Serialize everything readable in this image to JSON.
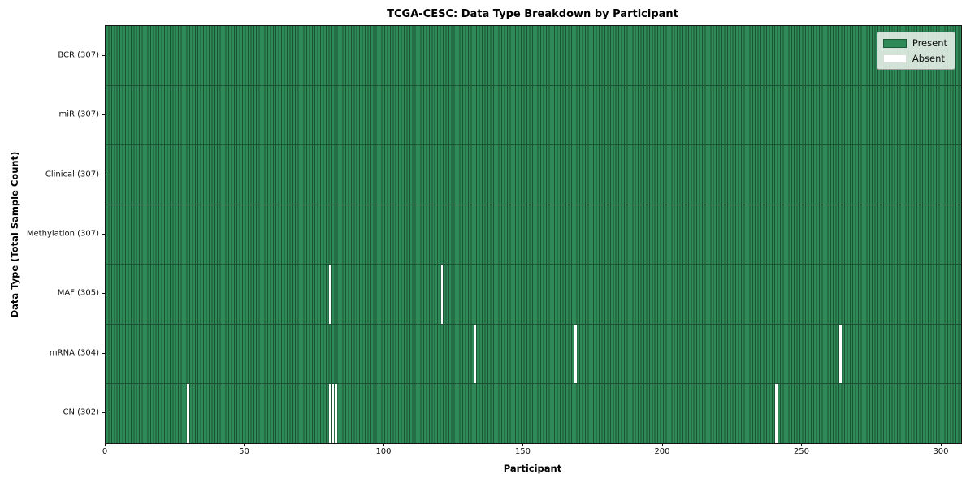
{
  "title": "TCGA-CESC: Data Type Breakdown by Participant",
  "chart_data": {
    "type": "heatmap",
    "title": "TCGA-CESC: Data Type Breakdown by Participant",
    "xlabel": "Participant",
    "ylabel": "Data Type (Total Sample Count)",
    "x_ticks": [
      0,
      50,
      100,
      150,
      200,
      250,
      300
    ],
    "xlim": [
      0,
      307
    ],
    "n_participants": 307,
    "grid": false,
    "legend_position": "upper right",
    "legend": [
      {
        "label": "Present",
        "color": "#2e8b57"
      },
      {
        "label": "Absent",
        "color": "#ffffff"
      }
    ],
    "rows": [
      {
        "label": "BCR (307)",
        "data_type": "BCR",
        "total": 307,
        "absent_participants": []
      },
      {
        "label": "miR (307)",
        "data_type": "miR",
        "total": 307,
        "absent_participants": []
      },
      {
        "label": "Clinical (307)",
        "data_type": "Clinical",
        "total": 307,
        "absent_participants": []
      },
      {
        "label": "Methylation (307)",
        "data_type": "Methylation",
        "total": 307,
        "absent_participants": []
      },
      {
        "label": "MAF (305)",
        "data_type": "MAF",
        "total": 305,
        "absent_participants": [
          80,
          120
        ]
      },
      {
        "label": "mRNA (304)",
        "data_type": "mRNA",
        "total": 304,
        "absent_participants": [
          132,
          168,
          263
        ]
      },
      {
        "label": "CN (302)",
        "data_type": "CN",
        "total": 302,
        "absent_participants": [
          29,
          80,
          81,
          82,
          240
        ]
      }
    ],
    "colors": {
      "present": "#2e8b57",
      "absent": "#ffffff",
      "cell_edge": "#1d5134",
      "spine": "#161616"
    }
  }
}
